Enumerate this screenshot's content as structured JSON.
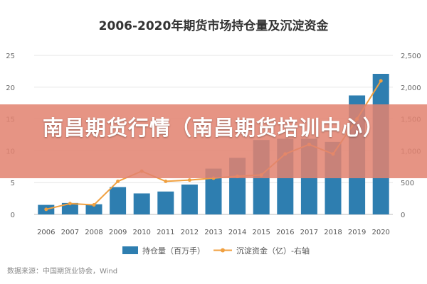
{
  "banner": {
    "text": "南昌期货行情（南昌期货培训中心）"
  },
  "chart_data": {
    "type": "bar",
    "title": "2006-2020年期货市场持仓量及沉淀资金",
    "categories": [
      "2006",
      "2007",
      "2008",
      "2009",
      "2010",
      "2011",
      "2012",
      "2013",
      "2014",
      "2015",
      "2016",
      "2017",
      "2018",
      "2019",
      "2020"
    ],
    "series": [
      {
        "name": "持仓量（百万手）",
        "type": "bar",
        "axis": "left",
        "color": "#2e7eb0",
        "values": [
          1.5,
          1.8,
          1.6,
          4.3,
          3.3,
          3.6,
          4.7,
          7.2,
          8.9,
          11.7,
          11.9,
          11.9,
          11.4,
          18.7,
          22.1
        ]
      },
      {
        "name": "沉淀资金（亿）-右轴",
        "type": "line",
        "axis": "right",
        "color": "#f0a040",
        "values": [
          80,
          170,
          150,
          520,
          680,
          520,
          540,
          570,
          600,
          620,
          950,
          1100,
          950,
          1500,
          2100
        ]
      }
    ],
    "y_left": {
      "min": 0,
      "max": 25,
      "ticks": [
        "0",
        "5",
        "10",
        "15",
        "20",
        "25"
      ]
    },
    "y_right": {
      "min": 0,
      "max": 2500,
      "ticks": [
        "0",
        "500",
        "1,000",
        "1,500",
        "2,000",
        "2,500"
      ]
    },
    "legend_position": "bottom",
    "source": "数据来源：中国期货业协会，Wind"
  }
}
